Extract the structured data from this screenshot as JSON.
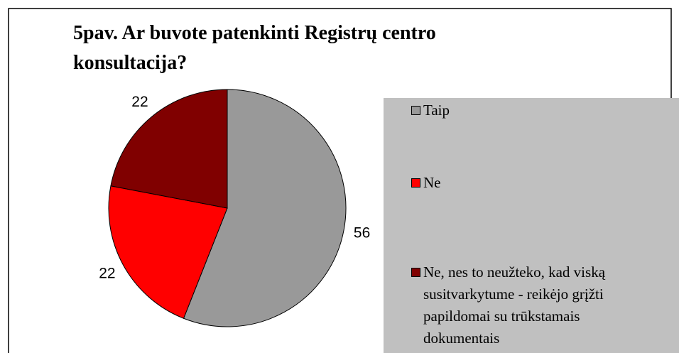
{
  "chart_data": {
    "type": "pie",
    "title": "5pav. Ar buvote patenkinti Registrų centro konsultacija?",
    "categories": [
      "Taip",
      "Ne",
      "Ne, nes to neužteko, kad viską susitvarkytume - reikėjo grįžti papildomai su trūkstamais dokumentais"
    ],
    "values": [
      56,
      22,
      22
    ],
    "colors": [
      "#999999",
      "#ff0000",
      "#800000"
    ],
    "legend": "right"
  }
}
